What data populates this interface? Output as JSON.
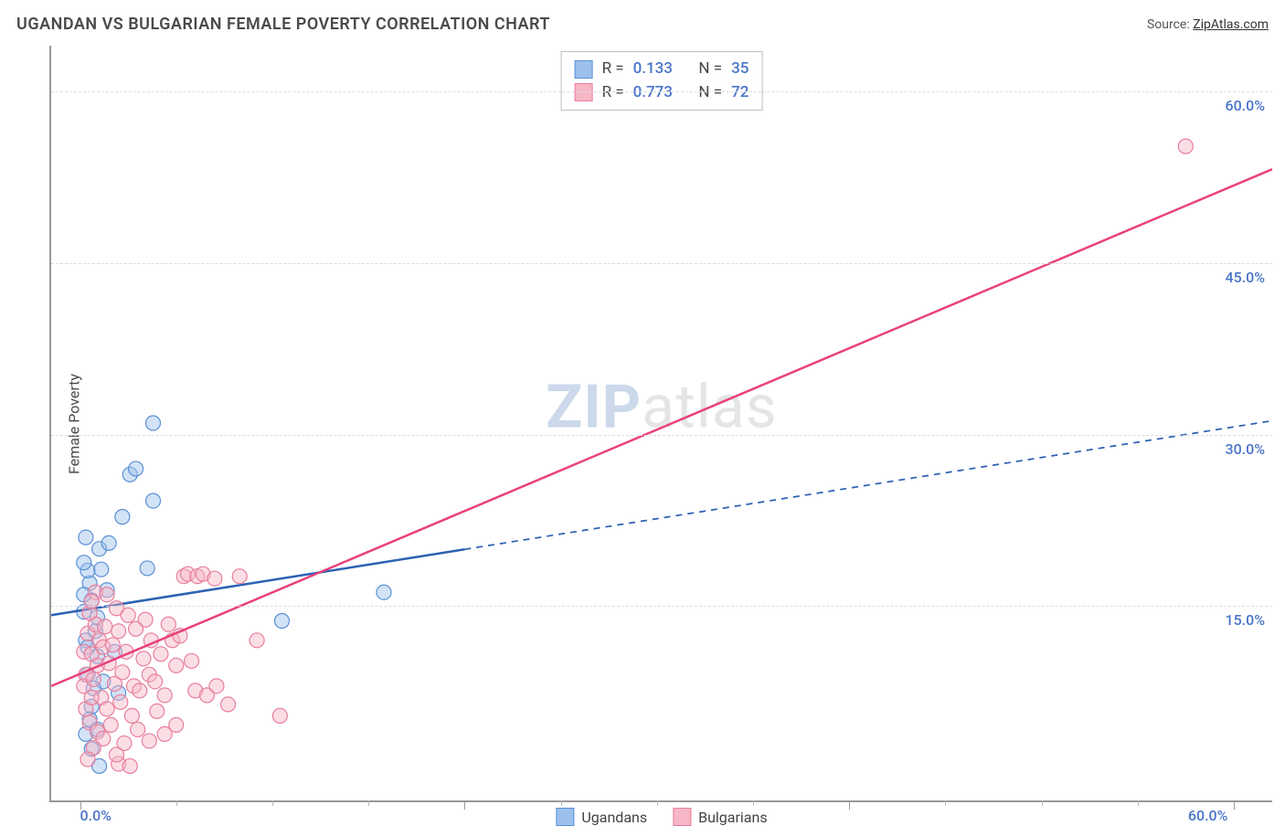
{
  "title": "UGANDAN VS BULGARIAN FEMALE POVERTY CORRELATION CHART",
  "source_label": "Source:",
  "source_name": "ZipAtlas.com",
  "watermark_a": "ZIP",
  "watermark_b": "atlas",
  "ylabel": "Female Poverty",
  "chart": {
    "type": "scatter",
    "background": "#ffffff",
    "grid_color": "#dcdcdc",
    "axis_color": "#999999",
    "xlim": [
      -1.5,
      62
    ],
    "ylim": [
      -2,
      64
    ],
    "x_ticks_labeled": [
      0,
      60
    ],
    "x_ticks_major": [
      0,
      20,
      40,
      60
    ],
    "x_ticks_minor": [
      5,
      10,
      15,
      25,
      30,
      35,
      45,
      50,
      55
    ],
    "y_ticks": [
      15,
      30,
      45,
      60
    ],
    "tick_suffix": "%",
    "tick_decimals": 1,
    "tick_color": "#4a74c9",
    "tick_fontsize": 16,
    "label_fontsize": 16,
    "title_fontsize": 18,
    "marker_radius": 8,
    "marker_opacity": 0.45,
    "line_width": 2.5
  },
  "series": [
    {
      "key": "ugandans",
      "label": "Ugandans",
      "color_fill": "#9cc0ec",
      "color_stroke": "#5a8fd6",
      "line_color": "#2d62b3",
      "line_dash_after_x": 20,
      "correlation_R": "0.133",
      "correlation_N": "35",
      "trend": {
        "x1": -1.5,
        "y1": 14.2,
        "x2": 62,
        "y2": 31.2
      },
      "points": [
        [
          0.2,
          14.5
        ],
        [
          0.5,
          17.0
        ],
        [
          0.3,
          12.0
        ],
        [
          0.4,
          18.1
        ],
        [
          0.6,
          15.5
        ],
        [
          0.8,
          12.8
        ],
        [
          0.2,
          18.8
        ],
        [
          1.0,
          20.0
        ],
        [
          0.3,
          21.0
        ],
        [
          1.5,
          20.5
        ],
        [
          2.2,
          22.8
        ],
        [
          0.4,
          9.0
        ],
        [
          0.6,
          6.2
        ],
        [
          0.3,
          3.8
        ],
        [
          0.9,
          10.6
        ],
        [
          1.2,
          8.4
        ],
        [
          1.8,
          11.0
        ],
        [
          2.6,
          26.5
        ],
        [
          2.9,
          27.0
        ],
        [
          3.8,
          31.0
        ],
        [
          0.6,
          2.5
        ],
        [
          1.4,
          16.4
        ],
        [
          0.2,
          16.0
        ],
        [
          0.5,
          5.1
        ],
        [
          0.9,
          14.0
        ],
        [
          10.5,
          13.7
        ],
        [
          15.8,
          16.2
        ],
        [
          1.0,
          1.0
        ],
        [
          2.0,
          7.4
        ],
        [
          1.1,
          18.2
        ],
        [
          0.7,
          7.8
        ],
        [
          3.5,
          18.3
        ],
        [
          3.8,
          24.2
        ],
        [
          0.9,
          4.2
        ],
        [
          0.4,
          11.4
        ]
      ]
    },
    {
      "key": "bulgarians",
      "label": "Bulgarians",
      "color_fill": "#f6b6c6",
      "color_stroke": "#e87e9d",
      "line_color": "#e8427a",
      "line_dash_after_x": null,
      "correlation_R": "0.773",
      "correlation_N": "72",
      "trend": {
        "x1": -1.5,
        "y1": 8.0,
        "x2": 62,
        "y2": 53.2
      },
      "points": [
        [
          0.2,
          11.0
        ],
        [
          0.4,
          12.6
        ],
        [
          0.6,
          10.8
        ],
        [
          0.3,
          9.0
        ],
        [
          0.8,
          13.4
        ],
        [
          0.5,
          14.4
        ],
        [
          1.0,
          12.0
        ],
        [
          0.2,
          8.0
        ],
        [
          0.7,
          8.6
        ],
        [
          0.9,
          9.8
        ],
        [
          1.2,
          11.4
        ],
        [
          1.5,
          10.0
        ],
        [
          1.1,
          7.0
        ],
        [
          1.8,
          8.2
        ],
        [
          0.3,
          6.0
        ],
        [
          0.6,
          7.0
        ],
        [
          1.4,
          6.0
        ],
        [
          2.2,
          9.2
        ],
        [
          1.7,
          11.6
        ],
        [
          1.3,
          13.2
        ],
        [
          2.0,
          12.8
        ],
        [
          2.4,
          11.0
        ],
        [
          2.8,
          8.0
        ],
        [
          2.1,
          6.6
        ],
        [
          0.5,
          4.8
        ],
        [
          0.9,
          4.0
        ],
        [
          1.6,
          4.6
        ],
        [
          1.2,
          3.4
        ],
        [
          0.7,
          2.6
        ],
        [
          2.3,
          3.0
        ],
        [
          0.4,
          1.6
        ],
        [
          2.0,
          1.2
        ],
        [
          2.6,
          1.0
        ],
        [
          3.3,
          10.4
        ],
        [
          3.6,
          9.0
        ],
        [
          3.1,
          7.6
        ],
        [
          3.9,
          8.4
        ],
        [
          4.2,
          10.8
        ],
        [
          4.8,
          12.0
        ],
        [
          4.4,
          7.2
        ],
        [
          4.0,
          5.8
        ],
        [
          5.0,
          9.8
        ],
        [
          5.4,
          17.6
        ],
        [
          5.6,
          17.8
        ],
        [
          6.1,
          17.6
        ],
        [
          6.4,
          17.8
        ],
        [
          5.8,
          10.2
        ],
        [
          6.0,
          7.6
        ],
        [
          6.6,
          7.2
        ],
        [
          7.1,
          8.0
        ],
        [
          7.0,
          17.4
        ],
        [
          7.7,
          6.4
        ],
        [
          8.3,
          17.6
        ],
        [
          9.2,
          12.0
        ],
        [
          10.4,
          5.4
        ],
        [
          57.5,
          55.2
        ],
        [
          3.4,
          13.8
        ],
        [
          2.9,
          13.0
        ],
        [
          1.9,
          14.8
        ],
        [
          2.5,
          14.2
        ],
        [
          3.7,
          12.0
        ],
        [
          4.6,
          13.4
        ],
        [
          5.2,
          12.4
        ],
        [
          0.8,
          16.2
        ],
        [
          1.4,
          16.0
        ],
        [
          0.6,
          15.4
        ],
        [
          3.0,
          4.2
        ],
        [
          3.6,
          3.2
        ],
        [
          4.4,
          3.8
        ],
        [
          5.0,
          4.6
        ],
        [
          1.9,
          2.0
        ],
        [
          2.7,
          5.4
        ]
      ]
    }
  ],
  "legend_top": {
    "R_label": "R  =",
    "N_label": "N  ="
  },
  "legend_bottom_labels": [
    "Ugandans",
    "Bulgarians"
  ]
}
